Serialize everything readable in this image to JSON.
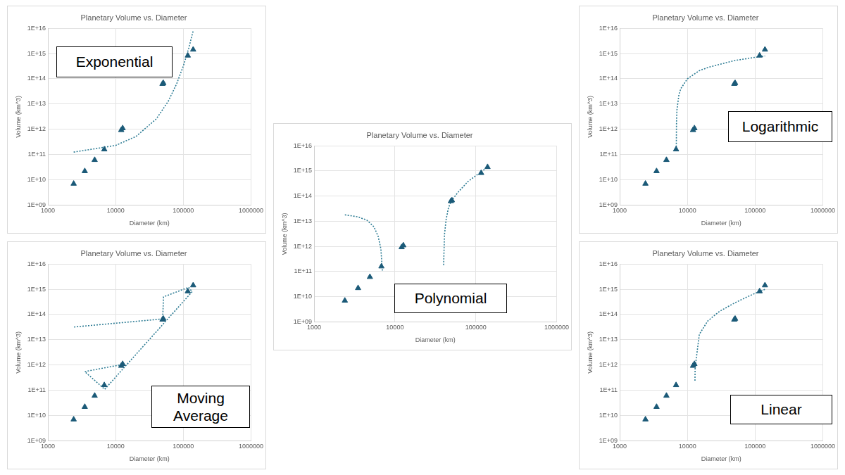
{
  "chart_data": [
    {
      "type": "scatter",
      "title": "Planetary Volume vs. Diameter",
      "x_label": "Diameter (km)",
      "y_label": "Volume (km^3)",
      "annotation": "Exponential",
      "log": true,
      "grid": true,
      "xlim": [
        1000,
        1000000
      ],
      "xticks": [
        1000,
        10000,
        100000,
        1000000
      ],
      "ylim": [
        1000000000.0,
        1e+16
      ],
      "yticks": [
        {
          "value": 1000000000.0,
          "label": "1E+09"
        },
        {
          "value": 10000000000.0,
          "label": "1E+10"
        },
        {
          "value": 100000000000.0,
          "label": "1E+11"
        },
        {
          "value": 1000000000000.0,
          "label": "1E+12"
        },
        {
          "value": 10000000000000.0,
          "label": "1E+13"
        },
        {
          "value": 100000000000000.0,
          "label": "1E+14"
        },
        {
          "value": 1000000000000000.0,
          "label": "1E+15"
        },
        {
          "value": 1e+16,
          "label": "1E+16"
        }
      ],
      "series": [
        {
          "color": "#1b5a78",
          "marker": "triangle",
          "x": [
            2400,
            3500,
            4900,
            6800,
            12100,
            12700,
            49200,
            50700,
            116500,
            139800
          ],
          "values": [
            7000000000.0,
            22000000000.0,
            61000000000.0,
            160000000000.0,
            930000000000.0,
            1100000000000.0,
            63000000000000.0,
            68000000000000.0,
            830000000000000.0,
            1430000000000000.0
          ]
        },
        {
          "type": "line",
          "color": "#2f7d95",
          "line_style": "dotted",
          "x": [
            2400,
            10000,
            20000,
            40000,
            60000,
            80000,
            100000,
            120000,
            140000
          ],
          "values": [
            125000000000.0,
            230000000000.0,
            520000000000.0,
            2600000000000.0,
            13000000000000.0,
            65000000000000.0,
            320000000000000.0,
            1600000000000000.0,
            8000000000000000.0
          ]
        }
      ]
    },
    {
      "type": "scatter",
      "title": "Planetary Volume vs. Diameter",
      "x_label": "Diameter (km)",
      "y_label": "Volume (km^3)",
      "annotation": "Logarithmic",
      "log": true,
      "grid": true,
      "xlim": [
        1000,
        1000000
      ],
      "xticks": [
        1000,
        10000,
        100000,
        1000000
      ],
      "ylim": [
        1000000000.0,
        1e+16
      ],
      "yticks": [
        {
          "value": 1000000000.0,
          "label": "1E+09"
        },
        {
          "value": 10000000000.0,
          "label": "1E+10"
        },
        {
          "value": 100000000000.0,
          "label": "1E+11"
        },
        {
          "value": 1000000000000.0,
          "label": "1E+12"
        },
        {
          "value": 10000000000000.0,
          "label": "1E+13"
        },
        {
          "value": 100000000000000.0,
          "label": "1E+14"
        },
        {
          "value": 1000000000000000.0,
          "label": "1E+15"
        },
        {
          "value": 1e+16,
          "label": "1E+16"
        }
      ],
      "series": [
        {
          "color": "#1b5a78",
          "marker": "triangle",
          "x": [
            2400,
            3500,
            4900,
            6800,
            12100,
            12700,
            49200,
            50700,
            116500,
            139800
          ],
          "values": [
            7000000000.0,
            22000000000.0,
            61000000000.0,
            160000000000.0,
            930000000000.0,
            1100000000000.0,
            63000000000000.0,
            68000000000000.0,
            830000000000000.0,
            1430000000000000.0
          ]
        },
        {
          "type": "line",
          "color": "#2f7d95",
          "line_style": "dotted",
          "x": [
            6855,
            6900,
            7000,
            7500,
            8000,
            10000,
            15000,
            20000,
            50000,
            100000,
            140000
          ],
          "values": [
            200000000000.0,
            1900000000000.0,
            5800000000000.0,
            24000000000000.0,
            41000000000000.0,
            100000000000000.0,
            210000000000000.0,
            280000000000000.0,
            530000000000000.0,
            710000000000000.0,
            800000000000000.0
          ]
        }
      ]
    },
    {
      "type": "scatter",
      "title": "Planetary Volume vs. Diameter",
      "x_label": "Diameter (km)",
      "y_label": "Volume (km^3)",
      "annotation": "Moving Average",
      "log": true,
      "grid": true,
      "xlim": [
        1000,
        1000000
      ],
      "xticks": [
        1000,
        10000,
        100000,
        1000000
      ],
      "ylim": [
        1000000000.0,
        1e+16
      ],
      "yticks": [
        {
          "value": 1000000000.0,
          "label": "1E+09"
        },
        {
          "value": 10000000000.0,
          "label": "1E+10"
        },
        {
          "value": 100000000000.0,
          "label": "1E+11"
        },
        {
          "value": 1000000000000.0,
          "label": "1E+12"
        },
        {
          "value": 10000000000000.0,
          "label": "1E+13"
        },
        {
          "value": 100000000000000.0,
          "label": "1E+14"
        },
        {
          "value": 1000000000000000.0,
          "label": "1E+15"
        },
        {
          "value": 1e+16,
          "label": "1E+16"
        }
      ],
      "series": [
        {
          "color": "#1b5a78",
          "marker": "triangle",
          "x": [
            2400,
            3500,
            4900,
            6800,
            12100,
            12700,
            49200,
            50700,
            116500,
            139800
          ],
          "values": [
            7000000000.0,
            22000000000.0,
            61000000000.0,
            160000000000.0,
            930000000000.0,
            1100000000000.0,
            63000000000000.0,
            68000000000000.0,
            830000000000000.0,
            1430000000000000.0
          ]
        },
        {
          "type": "line",
          "color": "#2f7d95",
          "line_style": "dotted",
          "x": [
            12500,
            3500,
            6900,
            135000,
            120000,
            51000,
            49500,
            2400
          ],
          "values": [
            1050000000000.0,
            550000000000.0,
            110000000000.0,
            800000000000000.0,
            1200000000000000.0,
            500000000000000.0,
            67000000000000.0,
            32000000000000.0
          ]
        }
      ]
    },
    {
      "type": "scatter",
      "title": "Planetary Volume vs. Diameter",
      "x_label": "Diameter (km)",
      "y_label": "Volume (km^3)",
      "annotation": "Linear",
      "log": true,
      "grid": true,
      "xlim": [
        1000,
        1000000
      ],
      "xticks": [
        1000,
        10000,
        100000,
        1000000
      ],
      "ylim": [
        1000000000.0,
        1e+16
      ],
      "yticks": [
        {
          "value": 1000000000.0,
          "label": "1E+09"
        },
        {
          "value": 10000000000.0,
          "label": "1E+10"
        },
        {
          "value": 100000000000.0,
          "label": "1E+11"
        },
        {
          "value": 1000000000000.0,
          "label": "1E+12"
        },
        {
          "value": 10000000000000.0,
          "label": "1E+13"
        },
        {
          "value": 100000000000000.0,
          "label": "1E+14"
        },
        {
          "value": 1000000000000000.0,
          "label": "1E+15"
        },
        {
          "value": 1e+16,
          "label": "1E+16"
        }
      ],
      "series": [
        {
          "color": "#1b5a78",
          "marker": "triangle",
          "x": [
            2400,
            3500,
            4900,
            6800,
            12100,
            12700,
            49200,
            50700,
            116500,
            139800
          ],
          "values": [
            7000000000.0,
            22000000000.0,
            61000000000.0,
            160000000000.0,
            930000000000.0,
            1100000000000.0,
            63000000000000.0,
            68000000000000.0,
            830000000000000.0,
            1430000000000000.0
          ]
        },
        {
          "type": "line",
          "color": "#2f7d95",
          "line_style": "dotted",
          "x": [
            12930,
            13000,
            15000,
            20000,
            30000,
            50000,
            80000,
            100000,
            120000,
            140000
          ],
          "values": [
            240000000000.0,
            790000000000.0,
            16500000000000.0,
            56000000000000.0,
            135000000000000.0,
            290000000000000.0,
            530000000000000.0,
            690000000000000.0,
            840000000000000.0,
            1000000000000000.0
          ]
        }
      ]
    },
    {
      "type": "scatter",
      "title": "Planetary Volume vs. Diameter",
      "x_label": "Diameter (km)",
      "y_label": "Volume (km^3)",
      "annotation": "Polynomial",
      "log": true,
      "grid": true,
      "xlim": [
        1000,
        1000000
      ],
      "xticks": [
        1000,
        10000,
        100000,
        1000000
      ],
      "ylim": [
        1000000000.0,
        1e+16
      ],
      "yticks": [
        {
          "value": 1000000000.0,
          "label": "1E+09"
        },
        {
          "value": 10000000000.0,
          "label": "1E+10"
        },
        {
          "value": 100000000000.0,
          "label": "1E+11"
        },
        {
          "value": 1000000000000.0,
          "label": "1E+12"
        },
        {
          "value": 10000000000000.0,
          "label": "1E+13"
        },
        {
          "value": 100000000000000.0,
          "label": "1E+14"
        },
        {
          "value": 1000000000000000.0,
          "label": "1E+15"
        },
        {
          "value": 1e+16,
          "label": "1E+16"
        }
      ],
      "series": [
        {
          "color": "#1b5a78",
          "marker": "triangle",
          "x": [
            2400,
            3500,
            4900,
            6800,
            12100,
            12700,
            49200,
            50700,
            116500,
            139800
          ],
          "values": [
            7000000000.0,
            22000000000.0,
            61000000000.0,
            160000000000.0,
            930000000000.0,
            1100000000000.0,
            63000000000000.0,
            68000000000000.0,
            830000000000000.0,
            1430000000000000.0
          ]
        },
        {
          "type": "line",
          "color": "#2f7d95",
          "line_style": "dotted",
          "x": [
            2400,
            3500,
            4500,
            5500,
            6200,
            6700,
            7000,
            20000,
            40000,
            41000,
            43000,
            46000,
            50000,
            60000,
            80000,
            100000,
            116000,
            140000
          ],
          "values": [
            18000000000000.0,
            15000000000000.0,
            11000000000000.0,
            6000000000000.0,
            2500000000000.0,
            800000000000.0,
            100000000000.0,
            null,
            180000000000.0,
            3000000000000.0,
            12000000000000.0,
            35000000000000.0,
            65000000000000.0,
            140000000000000.0,
            380000000000000.0,
            650000000000000.0,
            900000000000000.0,
            1450000000000000.0
          ]
        }
      ]
    }
  ]
}
